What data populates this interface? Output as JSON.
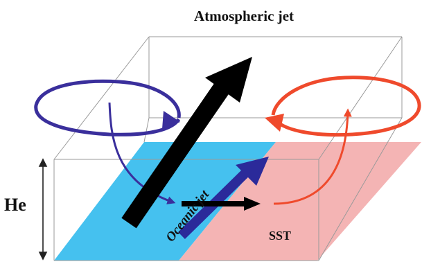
{
  "labels": {
    "title": "Atmospheric jet",
    "height": "He",
    "oceanic_jet": "Oceanic jet",
    "sst": "SST"
  },
  "colors": {
    "cold_region": "#45c1ef",
    "warm_region": "#f4b4b4",
    "cold_circulation": "#3a2f9c",
    "warm_circulation": "#ef4a2c",
    "oceanic_jet": "#2b2a9a",
    "jet_arrow": "#000000",
    "box_edge": "#9a9a9a",
    "oceanic_label": "#2b2a9a"
  }
}
